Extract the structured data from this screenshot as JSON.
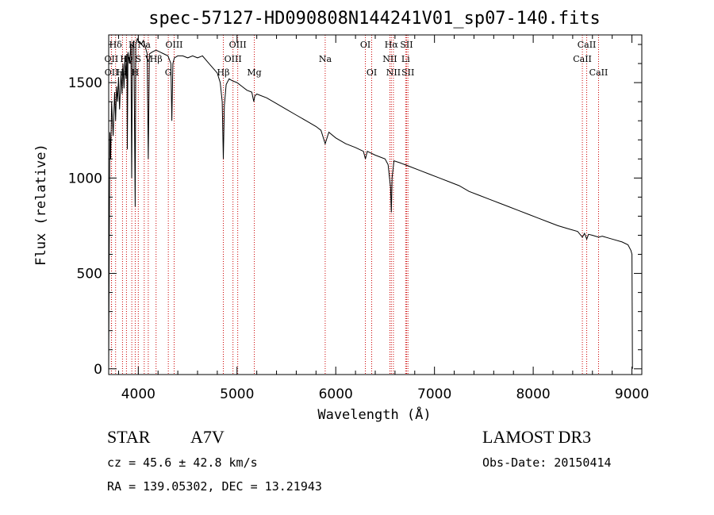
{
  "chart_data": {
    "type": "line",
    "title": "spec-57127-HD090808N144241V01_sp07-140.fits",
    "xlabel": "Wavelength (Å)",
    "ylabel": "Flux (relative)",
    "xlim": [
      3700,
      9100
    ],
    "ylim": [
      -30,
      1750
    ],
    "xticks": [
      4000,
      5000,
      6000,
      7000,
      8000,
      9000
    ],
    "yticks": [
      0,
      500,
      1000,
      1500
    ],
    "series": [
      {
        "name": "flux",
        "x": [
          3700,
          3705,
          3712,
          3720,
          3730,
          3745,
          3760,
          3770,
          3780,
          3790,
          3800,
          3810,
          3825,
          3835,
          3845,
          3855,
          3865,
          3875,
          3885,
          3889,
          3895,
          3910,
          3925,
          3933,
          3940,
          3955,
          3968,
          3975,
          3990,
          4010,
          4030,
          4050,
          4070,
          4090,
          4101,
          4112,
          4140,
          4180,
          4220,
          4260,
          4300,
          4330,
          4340,
          4350,
          4365,
          4400,
          4450,
          4500,
          4550,
          4600,
          4650,
          4700,
          4750,
          4800,
          4830,
          4850,
          4861,
          4872,
          4890,
          4920,
          4950,
          5000,
          5050,
          5100,
          5150,
          5170,
          5180,
          5200,
          5300,
          5400,
          5500,
          5600,
          5700,
          5800,
          5850,
          5893,
          5930,
          6000,
          6100,
          6200,
          6280,
          6300,
          6320,
          6400,
          6500,
          6530,
          6555,
          6563,
          6570,
          6590,
          6650,
          6750,
          6850,
          6950,
          7050,
          7150,
          7250,
          7350,
          7450,
          7550,
          7650,
          7750,
          7850,
          7950,
          8050,
          8150,
          8250,
          8350,
          8450,
          8498,
          8520,
          8542,
          8560,
          8600,
          8662,
          8700,
          8800,
          8900,
          8960,
          8990,
          9000,
          9005
        ],
        "values": [
          0,
          560,
          1240,
          1100,
          1400,
          1220,
          1450,
          1300,
          1480,
          1400,
          1530,
          1360,
          1560,
          1440,
          1600,
          1470,
          1640,
          1520,
          1650,
          1150,
          1660,
          1600,
          1700,
          1000,
          1680,
          1720,
          850,
          1700,
          1730,
          1710,
          1700,
          1720,
          1690,
          1650,
          1100,
          1650,
          1660,
          1670,
          1660,
          1650,
          1640,
          1600,
          1300,
          1600,
          1630,
          1640,
          1640,
          1630,
          1640,
          1630,
          1640,
          1610,
          1580,
          1550,
          1500,
          1400,
          1100,
          1380,
          1490,
          1520,
          1510,
          1500,
          1480,
          1460,
          1450,
          1400,
          1430,
          1440,
          1420,
          1390,
          1360,
          1330,
          1300,
          1270,
          1250,
          1180,
          1240,
          1210,
          1180,
          1160,
          1140,
          1100,
          1140,
          1120,
          1100,
          1070,
          950,
          820,
          1000,
          1090,
          1080,
          1060,
          1040,
          1020,
          1000,
          980,
          960,
          930,
          910,
          890,
          870,
          850,
          830,
          810,
          790,
          770,
          750,
          735,
          720,
          690,
          710,
          680,
          705,
          700,
          690,
          695,
          680,
          665,
          650,
          620,
          600,
          0
        ]
      }
    ],
    "spectral_lines": [
      {
        "name": "Hδ",
        "wavelength": 3770,
        "tier": 1
      },
      {
        "name": "OII",
        "wavelength": 3727,
        "tier": 2
      },
      {
        "name": "OII",
        "wavelength": 3729,
        "tier": 3
      },
      {
        "name": "Hε",
        "wavelength": 3840,
        "tier": 3
      },
      {
        "name": "Hγ",
        "wavelength": 3880,
        "tier": 2
      },
      {
        "name": "K",
        "wavelength": 3934,
        "tier": 1
      },
      {
        "name": "H",
        "wavelength": 3969,
        "tier": 3
      },
      {
        "name": "S",
        "wavelength": 4000,
        "tier": 2
      },
      {
        "name": "Na",
        "wavelength": 4060,
        "tier": 1
      },
      {
        "name": "V",
        "wavelength": 4101,
        "tier": 2
      },
      {
        "name": "Hβ",
        "wavelength": 4180,
        "tier": 2
      },
      {
        "name": "OIII",
        "wavelength": 4363,
        "tier": 1
      },
      {
        "name": "G",
        "wavelength": 4304,
        "tier": 3
      },
      {
        "name": "Hβ",
        "wavelength": 4861,
        "tier": 3
      },
      {
        "name": "OIII",
        "wavelength": 4959,
        "tier": 2
      },
      {
        "name": "OIII",
        "wavelength": 5007,
        "tier": 1
      },
      {
        "name": "Mg",
        "wavelength": 5175,
        "tier": 3
      },
      {
        "name": "Na",
        "wavelength": 5893,
        "tier": 2
      },
      {
        "name": "OI",
        "wavelength": 6300,
        "tier": 1
      },
      {
        "name": "OI",
        "wavelength": 6364,
        "tier": 3
      },
      {
        "name": "Hα",
        "wavelength": 6563,
        "tier": 1
      },
      {
        "name": "NII",
        "wavelength": 6548,
        "tier": 2
      },
      {
        "name": "NII",
        "wavelength": 6584,
        "tier": 3
      },
      {
        "name": "SII",
        "wavelength": 6717,
        "tier": 1
      },
      {
        "name": "Li",
        "wavelength": 6708,
        "tier": 2
      },
      {
        "name": "SII",
        "wavelength": 6731,
        "tier": 3
      },
      {
        "name": "CaII",
        "wavelength": 8542,
        "tier": 1
      },
      {
        "name": "CaII",
        "wavelength": 8498,
        "tier": 2
      },
      {
        "name": "CaII",
        "wavelength": 8662,
        "tier": 3
      }
    ]
  },
  "info": {
    "object_type": "STAR",
    "subclass": "A7V",
    "survey": "LAMOST DR3",
    "cz": "cz = 45.6 ± 42.8 km/s",
    "obs_date": "Obs-Date: 20150414",
    "coords": "RA = 139.05302, DEC =  13.21943"
  },
  "colors": {
    "axes": "#000000",
    "spectrum": "#000000",
    "line_markers": "#cc0000"
  }
}
